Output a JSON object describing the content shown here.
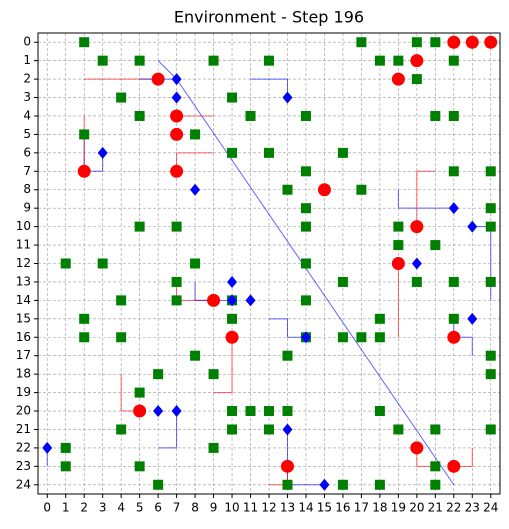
{
  "chart_data": {
    "type": "scatter",
    "title": "Environment - Step 196",
    "xlim": [
      -0.5,
      24.5
    ],
    "ylim": [
      24.5,
      -0.5
    ],
    "xticks": [
      0,
      1,
      2,
      3,
      4,
      5,
      6,
      7,
      8,
      9,
      10,
      11,
      12,
      13,
      14,
      15,
      16,
      17,
      18,
      19,
      20,
      21,
      22,
      23,
      24
    ],
    "yticks": [
      0,
      1,
      2,
      3,
      4,
      5,
      6,
      7,
      8,
      9,
      10,
      11,
      12,
      13,
      14,
      15,
      16,
      17,
      18,
      19,
      20,
      21,
      22,
      23,
      24
    ],
    "grid": true,
    "lines": [
      {
        "color": "#ff0000",
        "x": [
          2,
          6
        ],
        "y": [
          2,
          2
        ]
      },
      {
        "color": "#0000ff",
        "x": [
          5,
          7
        ],
        "y": [
          2,
          2
        ]
      },
      {
        "color": "#0000ff",
        "x": [
          6,
          7,
          22
        ],
        "y": [
          1,
          2,
          24
        ]
      },
      {
        "color": "#0000ff",
        "x": [
          11,
          13,
          13
        ],
        "y": [
          2,
          2,
          3
        ]
      },
      {
        "color": "#ff0000",
        "x": [
          7,
          9
        ],
        "y": [
          4,
          4
        ]
      },
      {
        "color": "#ff0000",
        "x": [
          7,
          7,
          9
        ],
        "y": [
          7,
          6,
          6
        ]
      },
      {
        "color": "#0000ff",
        "x": [
          2,
          2,
          3,
          3
        ],
        "y": [
          5,
          7,
          7,
          6
        ]
      },
      {
        "color": "#ff0000",
        "x": [
          2,
          2
        ],
        "y": [
          4,
          7
        ]
      },
      {
        "color": "#0000ff",
        "x": [
          19,
          19,
          22
        ],
        "y": [
          8,
          9,
          9
        ]
      },
      {
        "color": "#ff0000",
        "x": [
          20,
          20,
          21
        ],
        "y": [
          10,
          7,
          7
        ]
      },
      {
        "color": "#0000ff",
        "x": [
          23,
          24,
          24
        ],
        "y": [
          10,
          10,
          14
        ]
      },
      {
        "color": "#ff0000",
        "x": [
          19,
          19
        ],
        "y": [
          12,
          16
        ]
      },
      {
        "color": "#ff0000",
        "x": [
          7,
          7,
          9
        ],
        "y": [
          13,
          14,
          14
        ]
      },
      {
        "color": "#0000ff",
        "x": [
          8,
          8,
          10
        ],
        "y": [
          13,
          14,
          14
        ]
      },
      {
        "color": "#0000ff",
        "x": [
          12,
          13,
          13,
          14
        ],
        "y": [
          15,
          15,
          16,
          16
        ]
      },
      {
        "color": "#ff0000",
        "x": [
          10,
          10,
          9
        ],
        "y": [
          16,
          19,
          19
        ]
      },
      {
        "color": "#ff0000",
        "x": [
          4,
          4,
          5
        ],
        "y": [
          18,
          20,
          20
        ]
      },
      {
        "color": "#0000ff",
        "x": [
          7,
          7,
          6
        ],
        "y": [
          20,
          22,
          22
        ]
      },
      {
        "color": "#0000ff",
        "x": [
          22,
          22,
          23,
          23
        ],
        "y": [
          15,
          16,
          16,
          17
        ]
      },
      {
        "color": "#ff0000",
        "x": [
          20,
          20,
          21
        ],
        "y": [
          22,
          23,
          23
        ]
      },
      {
        "color": "#ff0000",
        "x": [
          22,
          23,
          23
        ],
        "y": [
          23,
          23,
          22
        ]
      },
      {
        "color": "#0000ff",
        "x": [
          13,
          13,
          15
        ],
        "y": [
          21,
          24,
          24
        ]
      },
      {
        "color": "#ff0000",
        "x": [
          12,
          13,
          13
        ],
        "y": [
          24,
          24,
          23
        ]
      },
      {
        "color": "#0000ff",
        "x": [
          0,
          0
        ],
        "y": [
          22,
          23
        ]
      }
    ],
    "series": [
      {
        "color": "#008000",
        "marker": "square",
        "x": [
          2,
          17,
          20,
          21,
          3,
          5,
          9,
          12,
          18,
          19,
          22,
          20,
          4,
          10,
          5,
          11,
          14,
          21,
          22,
          2,
          8,
          10,
          12,
          16,
          14,
          22,
          24,
          13,
          17,
          14,
          24,
          5,
          7,
          14,
          19,
          24,
          19,
          21,
          1,
          3,
          8,
          14,
          7,
          16,
          20,
          22,
          24,
          4,
          7,
          10,
          14,
          2,
          10,
          18,
          22,
          2,
          4,
          14,
          16,
          17,
          18,
          8,
          13,
          24,
          6,
          9,
          24,
          5,
          10,
          11,
          12,
          13,
          18,
          4,
          10,
          12,
          19,
          21,
          24,
          1,
          9,
          1,
          5,
          21,
          6,
          13,
          16,
          18,
          21
        ],
        "y": [
          0,
          0,
          0,
          0,
          1,
          1,
          1,
          1,
          1,
          1,
          1,
          2,
          3,
          3,
          4,
          4,
          4,
          4,
          4,
          5,
          5,
          6,
          6,
          6,
          7,
          7,
          7,
          8,
          8,
          9,
          9,
          10,
          10,
          10,
          10,
          10,
          11,
          11,
          12,
          12,
          12,
          12,
          13,
          13,
          13,
          13,
          13,
          14,
          14,
          14,
          14,
          15,
          15,
          15,
          15,
          16,
          16,
          16,
          16,
          16,
          16,
          17,
          17,
          17,
          18,
          18,
          18,
          19,
          20,
          20,
          20,
          20,
          20,
          21,
          21,
          21,
          21,
          21,
          21,
          22,
          22,
          23,
          23,
          23,
          24,
          24,
          24,
          24,
          24
        ]
      },
      {
        "color": "#ff0000",
        "marker": "circle",
        "x": [
          22,
          23,
          24,
          20,
          6,
          19,
          7,
          7,
          2,
          7,
          15,
          20,
          19,
          9,
          10,
          22,
          5,
          20,
          13,
          22
        ],
        "y": [
          0,
          0,
          0,
          1,
          2,
          2,
          4,
          5,
          7,
          7,
          8,
          10,
          12,
          14,
          16,
          16,
          20,
          22,
          23,
          23
        ]
      },
      {
        "color": "#0000ff",
        "marker": "diamond",
        "x": [
          7,
          7,
          13,
          3,
          8,
          22,
          23,
          20,
          10,
          10,
          11,
          23,
          14,
          6,
          7,
          13,
          0,
          15
        ],
        "y": [
          2,
          3,
          3,
          6,
          8,
          9,
          10,
          12,
          13,
          14,
          14,
          15,
          16,
          20,
          20,
          21,
          22,
          24
        ]
      }
    ]
  }
}
